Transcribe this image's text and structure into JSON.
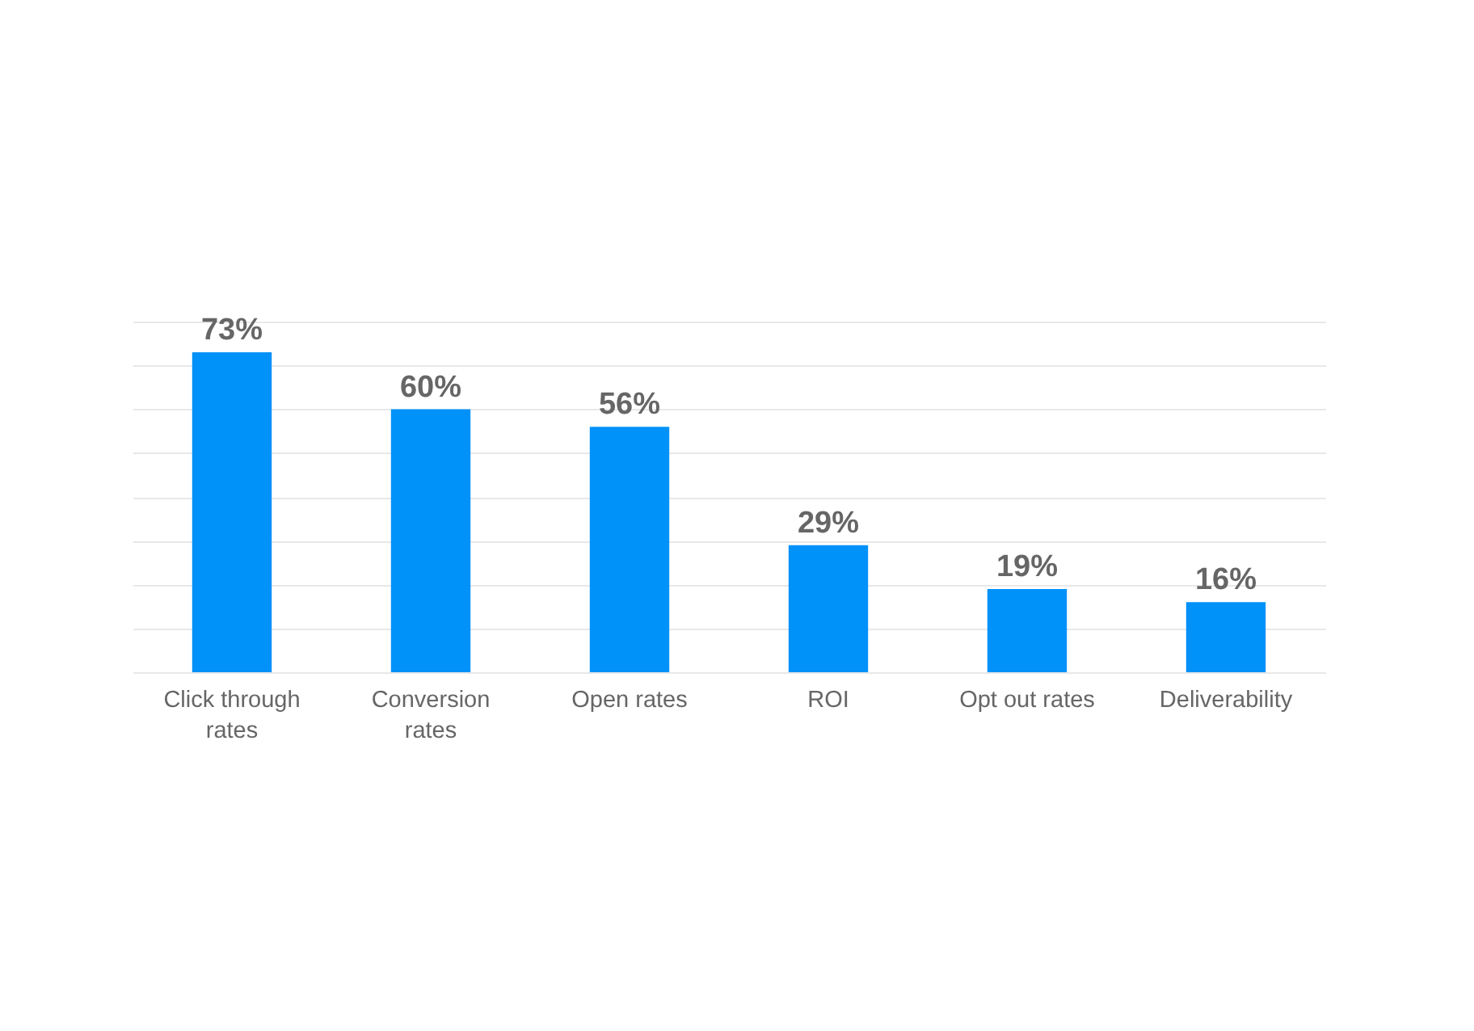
{
  "chart_data": {
    "type": "bar",
    "categories": [
      "Click through rates",
      "Conversion rates",
      "Open rates",
      "ROI",
      "Opt out rates",
      "Deliverability"
    ],
    "values": [
      73,
      60,
      56,
      29,
      19,
      16
    ],
    "value_labels": [
      "73%",
      "60%",
      "56%",
      "29%",
      "19%",
      "16%"
    ],
    "color": "#0091f9",
    "ylim": [
      0,
      80
    ],
    "yticks": [
      {
        "value": 0,
        "label": null
      },
      {
        "value": 10,
        "label": null
      },
      {
        "value": 20,
        "label": null
      },
      {
        "value": 30,
        "label": null
      },
      {
        "value": 40,
        "label": null
      },
      {
        "value": 50,
        "label": null
      },
      {
        "value": 60,
        "label": null
      },
      {
        "value": 70,
        "label": null
      },
      {
        "value": 80,
        "label": null
      }
    ],
    "grid": "y",
    "tick_labels": "x"
  }
}
